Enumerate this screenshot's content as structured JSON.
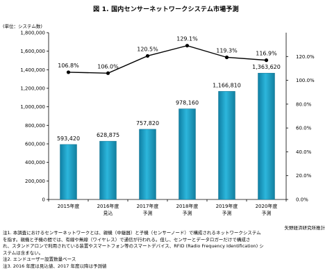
{
  "title": "図 1. 国内センサーネットワークシステム市場予測",
  "unit_label": "(単位：システム数)",
  "source": "矢野経済研究所推計",
  "notes": [
    "注1. 本調査におけるセンサーネットワークとは、親機（中継器）と子機（センサーノード）で構成されるネットワークシステム",
    "を指す。親機と子機の間では、有線や無線（ワイヤレス）で通信が行われる。但し、センサーとデータロガーだけで構成さ",
    "れ、スタンドアロンで利用されている装置やスマートフォン等のスマートデバイス、RFID (Radio Frequency Identification) シ",
    "ステムは含まない。",
    "注2. エンドユーザー設置数量ベース",
    "注3. 2016 年度は見込値、2017 年度以降は予測値"
  ],
  "colors": {
    "bar": "#1ea3c8",
    "bar_edge": "#0d6e8c",
    "line": "#000000"
  },
  "chart_data": {
    "type": "bar",
    "categories": [
      [
        "2015年度"
      ],
      [
        "2016年度",
        "見込"
      ],
      [
        "2017年度",
        "予測"
      ],
      [
        "2018年度",
        "予測"
      ],
      [
        "2019年度",
        "予測"
      ],
      [
        "2020年度",
        "予測"
      ]
    ],
    "series": [
      {
        "type": "bar",
        "axis": "left",
        "values": [
          593420,
          628875,
          757820,
          978160,
          1166810,
          1363620
        ],
        "labels": [
          "593,420",
          "628,875",
          "757,820",
          "978,160",
          "1,166,810",
          "1,363,620"
        ]
      },
      {
        "type": "line",
        "axis": "right",
        "values": [
          106.8,
          106.0,
          120.5,
          129.1,
          119.3,
          116.9
        ],
        "labels": [
          "106.8%",
          "106.0%",
          "120.5%",
          "129.1%",
          "119.3%",
          "116.9%"
        ]
      }
    ],
    "y_left": {
      "min": 0,
      "max": 1800000,
      "step": 200000,
      "ticks": [
        "0",
        "200,000",
        "400,000",
        "600,000",
        "800,000",
        "1,000,000",
        "1,200,000",
        "1,400,000",
        "1,600,000",
        "1,800,000"
      ]
    },
    "y_right": {
      "min": 0,
      "max": 140,
      "step": 20,
      "ticks": [
        "0.0%",
        "20.0%",
        "40.0%",
        "60.0%",
        "80.0%",
        "100.0%",
        "120.0%"
      ]
    },
    "grid": false
  }
}
